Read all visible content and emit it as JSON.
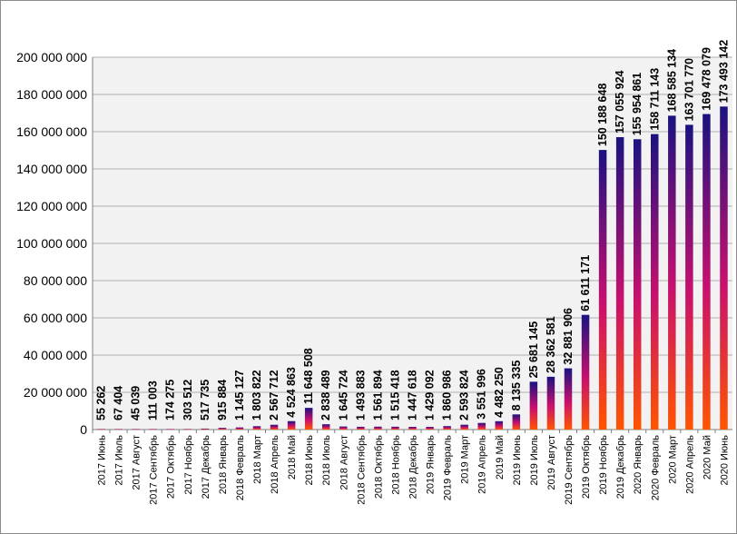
{
  "chart_data": {
    "type": "bar",
    "title": "",
    "xlabel": "",
    "ylabel": "",
    "ylim": [
      0,
      200000000
    ],
    "yticks": [
      0,
      20000000,
      40000000,
      60000000,
      80000000,
      100000000,
      120000000,
      140000000,
      160000000,
      180000000,
      200000000
    ],
    "ytick_labels": [
      "0",
      "20 000 000",
      "40 000 000",
      "60 000 000",
      "80 000 000",
      "100 000 000",
      "120 000 000",
      "140 000 000",
      "160 000 000",
      "180 000 000",
      "200 000 000"
    ],
    "grid": "horizontal",
    "legend": "none",
    "colors": {
      "bar_top": "#1a1280",
      "bar_mid": "#c8106e",
      "bar_bottom": "#ff5500",
      "plot_background": "#f2f2f2",
      "grid": "#b0b0b0"
    },
    "categories": [
      "2017 Июнь",
      "2017 Июль",
      "2017 Август",
      "2017 Сентябрь",
      "2017 Октябрь",
      "2017 Ноябрь",
      "2017 Декабрь",
      "2018 Январь",
      "2018 Февраль",
      "2018 Март",
      "2018 Апрель",
      "2018 Май",
      "2018 Июнь",
      "2018 Июль",
      "2018 Август",
      "2018 Сентябрь",
      "2018 Октябрь",
      "2018 Ноябрь",
      "2018 Декабрь",
      "2019 Январь",
      "2019 Февраль",
      "2019 Март",
      "2019 Апрель",
      "2019 Май",
      "2019 Июнь",
      "2019 Июль",
      "2019 Август",
      "2019 Сентябрь",
      "2019 Октябрь",
      "2019 Ноябрь",
      "2019 Декабрь",
      "2020 Январь",
      "2020 Февраль",
      "2020 Март",
      "2020 Апрель",
      "2020 Май",
      "2020 Июнь"
    ],
    "values": [
      55262,
      67404,
      45039,
      111003,
      174275,
      303512,
      517735,
      915884,
      1145127,
      1803822,
      2567712,
      4524863,
      11648508,
      2838489,
      1645724,
      1493883,
      1561894,
      1515418,
      1447618,
      1429092,
      1860986,
      2593824,
      3551996,
      4482250,
      8135335,
      25681145,
      28362581,
      32881906,
      61611171,
      150188648,
      157055924,
      155954861,
      158711143,
      168585134,
      163701770,
      169478079,
      173493142
    ],
    "value_labels": [
      "55 262",
      "67 404",
      "45 039",
      "111 003",
      "174 275",
      "303 512",
      "517 735",
      "915 884",
      "1 145 127",
      "1 803 822",
      "2 567 712",
      "4 524 863",
      "11 648 508",
      "2 838 489",
      "1 645 724",
      "1 493 883",
      "1 561 894",
      "1 515 418",
      "1 447 618",
      "1 429 092",
      "1 860 986",
      "2 593 824",
      "3 551 996",
      "4 482 250",
      "8 135 335",
      "25 681 145",
      "28 362 581",
      "32 881 906",
      "61 611 171",
      "150 188 648",
      "157 055 924",
      "155 954 861",
      "158 711 143",
      "168 585 134",
      "163 701 770",
      "169 478 079",
      "173 493 142"
    ]
  }
}
